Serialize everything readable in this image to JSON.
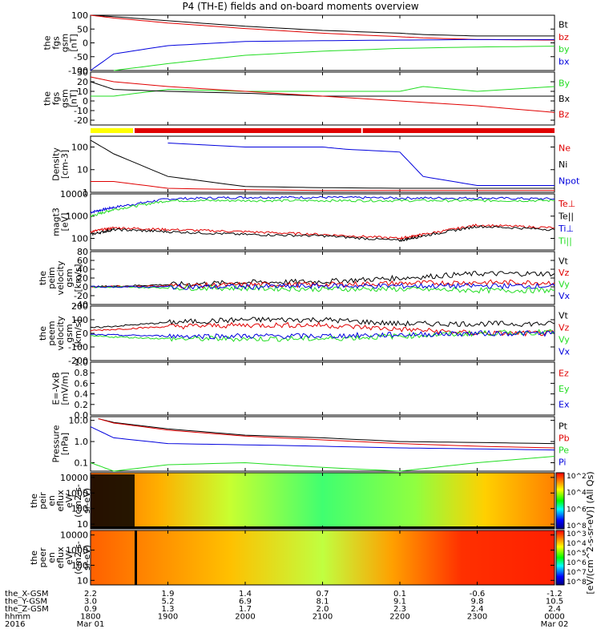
{
  "title": "P4 (TH-E) fields and on-board moments overview",
  "colors": {
    "black": "#000000",
    "red": "#e00000",
    "green": "#22dd22",
    "blue": "#0000dd",
    "yellow": "#ffff00",
    "barRed": "#e00000"
  },
  "chart_data": [
    {
      "type": "line",
      "ylabel": [
        "the",
        "fgs",
        "gsm",
        "[nT]"
      ],
      "ylim": [
        -100,
        100
      ],
      "yticks": [
        "100",
        "50",
        "0",
        "-50",
        "-100"
      ],
      "yticks_values": [
        100,
        50,
        0,
        -50,
        -100
      ],
      "legend": [
        {
          "label": "Bt",
          "color": "#000000"
        },
        {
          "label": "bz",
          "color": "#e00000"
        },
        {
          "label": "by",
          "color": "#22dd22"
        },
        {
          "label": "bx",
          "color": "#0000dd"
        }
      ],
      "series": [
        {
          "color": "#000000",
          "x": [
            1800,
            1830,
            1900,
            2000,
            2100,
            2200,
            2230,
            2300,
            2400
          ],
          "y": [
            100,
            95,
            80,
            60,
            45,
            35,
            30,
            25,
            25
          ]
        },
        {
          "color": "#e00000",
          "x": [
            1800,
            1830,
            1900,
            2000,
            2100,
            2200,
            2230,
            2300,
            2400
          ],
          "y": [
            100,
            90,
            72,
            52,
            35,
            22,
            18,
            12,
            10
          ]
        },
        {
          "color": "#22dd22",
          "x": [
            1830,
            1900,
            2000,
            2100,
            2200,
            2300,
            2400
          ],
          "y": [
            -100,
            -75,
            -45,
            -30,
            -20,
            -15,
            -12
          ]
        },
        {
          "color": "#0000dd",
          "x": [
            1800,
            1830,
            1900,
            2000,
            2100,
            2200,
            2300,
            2400
          ],
          "y": [
            -100,
            -40,
            -10,
            5,
            8,
            10,
            12,
            12
          ]
        }
      ]
    },
    {
      "type": "line",
      "ylabel": [
        "the",
        "fgs",
        "gsm",
        "[nT]"
      ],
      "ylim": [
        -25,
        30
      ],
      "yticks": [
        "30",
        "20",
        "10",
        "0",
        "-10",
        "-20"
      ],
      "yticks_values": [
        30,
        20,
        10,
        0,
        -10,
        -20
      ],
      "legend": [
        {
          "label": "By",
          "color": "#22dd22"
        },
        {
          "label": "Bx",
          "color": "#000000"
        },
        {
          "label": "Bz",
          "color": "#e00000"
        }
      ],
      "series": [
        {
          "color": "#22dd22",
          "x": [
            1800,
            1830,
            1900,
            2000,
            2100,
            2200,
            2230,
            2300,
            2400
          ],
          "y": [
            5,
            5,
            12,
            10,
            10,
            10,
            15,
            10,
            15
          ]
        },
        {
          "color": "#000000",
          "x": [
            1800,
            1830,
            1900,
            2000,
            2100,
            2200,
            2300,
            2400
          ],
          "y": [
            20,
            12,
            10,
            8,
            5,
            5,
            5,
            5
          ]
        },
        {
          "color": "#e00000",
          "x": [
            1800,
            1830,
            1900,
            2000,
            2100,
            2200,
            2300,
            2400
          ],
          "y": [
            25,
            20,
            15,
            10,
            5,
            0,
            -5,
            -12
          ]
        }
      ]
    },
    {
      "type": "line",
      "ylabel": [
        "Density",
        "[cm-3]"
      ],
      "scale": "log",
      "ylim": [
        1,
        300
      ],
      "yticks": [
        "100",
        "10",
        "1"
      ],
      "yticks_values": [
        100,
        10,
        1
      ],
      "legend": [
        {
          "label": "Ne",
          "color": "#e00000"
        },
        {
          "label": "Ni",
          "color": "#000000"
        },
        {
          "label": "Npot",
          "color": "#0000dd"
        }
      ],
      "series": [
        {
          "color": "#e00000",
          "x": [
            1800,
            1830,
            1900,
            2000,
            2100,
            2200,
            2300,
            2400
          ],
          "y": [
            3,
            3,
            1.5,
            1.3,
            1.2,
            1.2,
            1.2,
            1.2
          ]
        },
        {
          "color": "#000000",
          "x": [
            1800,
            1830,
            1900,
            2000,
            2100,
            2200,
            2300,
            2400
          ],
          "y": [
            200,
            50,
            5,
            1.8,
            1.6,
            1.5,
            1.5,
            1.5
          ]
        },
        {
          "color": "#0000dd",
          "x": [
            1900,
            2000,
            2100,
            2130,
            2200,
            2230,
            2300,
            2400
          ],
          "y": [
            150,
            100,
            100,
            80,
            60,
            5,
            2,
            2
          ]
        }
      ]
    },
    {
      "type": "line",
      "ylabel": [
        "magt3",
        "[eV]"
      ],
      "scale": "log",
      "ylim": [
        30,
        10000
      ],
      "yticks": [
        "10000",
        "1000",
        "100"
      ],
      "yticks_values": [
        10000,
        1000,
        100
      ],
      "legend": [
        {
          "label": "Te⊥",
          "color": "#e00000"
        },
        {
          "label": "Te||",
          "color": "#000000"
        },
        {
          "label": "Ti⊥",
          "color": "#0000dd"
        },
        {
          "label": "Ti||",
          "color": "#22dd22"
        }
      ],
      "series": [
        {
          "color": "#0000dd",
          "x": [
            1800,
            1830,
            1900,
            2000,
            2100,
            2200,
            2300,
            2400
          ],
          "y": [
            1500,
            2500,
            6000,
            7000,
            7000,
            6500,
            6500,
            6000
          ]
        },
        {
          "color": "#22dd22",
          "x": [
            1800,
            1830,
            1900,
            2000,
            2100,
            2200,
            2300,
            2400
          ],
          "y": [
            1000,
            2000,
            5000,
            5000,
            5000,
            5000,
            5000,
            5000
          ]
        },
        {
          "color": "#e00000",
          "x": [
            1800,
            1830,
            1900,
            2000,
            2100,
            2200,
            2230,
            2300,
            2400
          ],
          "y": [
            200,
            300,
            250,
            200,
            150,
            100,
            150,
            400,
            300
          ]
        },
        {
          "color": "#000000",
          "x": [
            1800,
            1830,
            1900,
            2000,
            2100,
            2200,
            2230,
            2300,
            2400
          ],
          "y": [
            150,
            250,
            200,
            150,
            130,
            80,
            130,
            350,
            250
          ]
        }
      ]
    },
    {
      "type": "line",
      "ylabel": [
        "the",
        "peim",
        "velocity",
        "gsm",
        "[km/s]"
      ],
      "ylim": [
        -40,
        80
      ],
      "yticks": [
        "80",
        "60",
        "40",
        "20",
        "0",
        "-20",
        "-40"
      ],
      "yticks_values": [
        80,
        60,
        40,
        20,
        0,
        -20,
        -40
      ],
      "legend": [
        {
          "label": "Vt",
          "color": "#000000"
        },
        {
          "label": "Vz",
          "color": "#e00000"
        },
        {
          "label": "Vy",
          "color": "#22dd22"
        },
        {
          "label": "Vx",
          "color": "#0000dd"
        }
      ],
      "series": [
        {
          "color": "#000000",
          "x": [
            1800,
            1900,
            2000,
            2100,
            2200,
            2300,
            2400
          ],
          "y": [
            0,
            5,
            10,
            12,
            20,
            30,
            30
          ]
        },
        {
          "color": "#e00000",
          "x": [
            1800,
            1900,
            2000,
            2100,
            2200,
            2300,
            2400
          ],
          "y": [
            0,
            2,
            5,
            5,
            8,
            10,
            10
          ]
        },
        {
          "color": "#22dd22",
          "x": [
            1800,
            1900,
            2000,
            2100,
            2200,
            2300,
            2400
          ],
          "y": [
            0,
            -2,
            -3,
            -5,
            -5,
            -8,
            -8
          ]
        },
        {
          "color": "#0000dd",
          "x": [
            1800,
            1900,
            2000,
            2100,
            2200,
            2300,
            2400
          ],
          "y": [
            0,
            0,
            0,
            2,
            2,
            2,
            2
          ]
        }
      ]
    },
    {
      "type": "line",
      "ylabel": [
        "the",
        "peem",
        "velocity",
        "gsm",
        "[km/s]"
      ],
      "ylim": [
        -200,
        200
      ],
      "yticks": [
        "200",
        "100",
        "0",
        "-100",
        "-200"
      ],
      "yticks_values": [
        200,
        100,
        0,
        -100,
        -200
      ],
      "legend": [
        {
          "label": "Vt",
          "color": "#000000"
        },
        {
          "label": "Vz",
          "color": "#e00000"
        },
        {
          "label": "Vy",
          "color": "#22dd22"
        },
        {
          "label": "Vx",
          "color": "#0000dd"
        }
      ],
      "series": [
        {
          "color": "#000000",
          "x": [
            1800,
            1900,
            2000,
            2100,
            2200,
            2300,
            2400
          ],
          "y": [
            40,
            80,
            100,
            100,
            70,
            70,
            70
          ]
        },
        {
          "color": "#e00000",
          "x": [
            1800,
            1900,
            2000,
            2100,
            2200,
            2300,
            2400
          ],
          "y": [
            20,
            50,
            60,
            60,
            30,
            0,
            0
          ]
        },
        {
          "color": "#22dd22",
          "x": [
            1800,
            1900,
            2000,
            2100,
            2200,
            2300,
            2400
          ],
          "y": [
            -20,
            -40,
            -40,
            -40,
            -20,
            0,
            10
          ]
        },
        {
          "color": "#0000dd",
          "x": [
            1800,
            1900,
            2000,
            2100,
            2200,
            2300,
            2400
          ],
          "y": [
            -10,
            -20,
            -20,
            -20,
            -10,
            0,
            0
          ]
        }
      ]
    },
    {
      "type": "line",
      "ylabel": [
        "E=-VxB",
        "[mV/m]"
      ],
      "ylim": [
        0,
        1
      ],
      "yticks": [
        "1.0",
        "0.8",
        "0.6",
        "0.4",
        "0.2",
        "0.0"
      ],
      "yticks_values": [
        1.0,
        0.8,
        0.6,
        0.4,
        0.2,
        0.0
      ],
      "legend": [
        {
          "label": "Ez",
          "color": "#e00000"
        },
        {
          "label": "Ey",
          "color": "#22dd22"
        },
        {
          "label": "Ex",
          "color": "#0000dd"
        }
      ],
      "series": []
    },
    {
      "type": "line",
      "ylabel": [
        "Pressure",
        "[nPa]"
      ],
      "scale": "log",
      "ylim": [
        0.04,
        15
      ],
      "yticks": [
        "10.0",
        "1.0",
        "0.1"
      ],
      "yticks_values": [
        10,
        1,
        0.1
      ],
      "legend": [
        {
          "label": "Pt",
          "color": "#000000"
        },
        {
          "label": "Pb",
          "color": "#e00000"
        },
        {
          "label": "Pe",
          "color": "#22dd22"
        },
        {
          "label": "Pi",
          "color": "#0000dd"
        }
      ],
      "series": [
        {
          "color": "#000000",
          "x": [
            1810,
            1830,
            1900,
            2000,
            2100,
            2200,
            2300,
            2400
          ],
          "y": [
            12,
            8,
            4,
            2,
            1.5,
            1.0,
            0.9,
            0.8
          ]
        },
        {
          "color": "#e00000",
          "x": [
            1810,
            1830,
            1900,
            2000,
            2100,
            2200,
            2300,
            2400
          ],
          "y": [
            12,
            7.5,
            3.5,
            1.8,
            1.2,
            0.8,
            0.6,
            0.5
          ]
        },
        {
          "color": "#0000dd",
          "x": [
            1800,
            1830,
            1900,
            2000,
            2100,
            2200,
            2300,
            2400
          ],
          "y": [
            5,
            1.5,
            0.8,
            0.7,
            0.6,
            0.5,
            0.45,
            0.4
          ]
        },
        {
          "color": "#22dd22",
          "x": [
            1800,
            1830,
            1900,
            2000,
            2100,
            2200,
            2300,
            2400
          ],
          "y": [
            0.1,
            0.04,
            0.08,
            0.1,
            0.06,
            0.04,
            0.1,
            0.2
          ]
        }
      ]
    },
    {
      "type": "heatmap",
      "ylabel": [
        "the",
        "peir",
        "en",
        "eflux",
        "eV/",
        "(cm2-s-",
        "sr-eV)"
      ],
      "scale": "log",
      "ylim": [
        5,
        20000
      ],
      "yticks": [
        "10000",
        "1000",
        "100",
        "10"
      ],
      "yticks_values": [
        10000,
        1000,
        100,
        10
      ],
      "colorbar_ticks": [
        "10^8",
        "10^6",
        "10^4",
        "10^2"
      ]
    },
    {
      "type": "heatmap",
      "ylabel": [
        "the",
        "peer",
        "en",
        "eflux",
        "eV/",
        "(cm2-s-",
        "sr-eV)"
      ],
      "scale": "log",
      "ylim": [
        5,
        20000
      ],
      "yticks": [
        "10000",
        "1000",
        "100",
        "10"
      ],
      "yticks_values": [
        10000,
        1000,
        100,
        10
      ],
      "colorbar_ticks": [
        "10^8",
        "10^7",
        "10^6",
        "10^5",
        "10^4",
        "10^3"
      ]
    }
  ],
  "quality_bar": {
    "segments": [
      {
        "from": 1800,
        "to": 1855,
        "color": "#ffff00"
      },
      {
        "from": 1857,
        "to": 2150,
        "color": "#e00000"
      },
      {
        "from": 2152,
        "to": 2400,
        "color": "#e00000"
      }
    ]
  },
  "colorbar_title": "[eV/(cm^2-s-sr-eV)] (All Qs)",
  "xaxis": {
    "rows": [
      {
        "label": "the_X-GSM",
        "values": [
          "2.2",
          "1.9",
          "1.4",
          "0.7",
          "0.1",
          "-0.6",
          "-1.2"
        ]
      },
      {
        "label": "the_Y-GSM",
        "values": [
          "3.0",
          "5.2",
          "6.9",
          "8.1",
          "9.1",
          "9.8",
          "10.5"
        ]
      },
      {
        "label": "the_Z-GSM",
        "values": [
          "0.9",
          "1.3",
          "1.7",
          "2.0",
          "2.3",
          "2.4",
          "2.4"
        ]
      },
      {
        "label": "hhmm",
        "values": [
          "1800",
          "1900",
          "2000",
          "2100",
          "2200",
          "2300",
          "0000"
        ]
      },
      {
        "label": "2016",
        "values": [
          "Mar 01",
          "",
          "",
          "",
          "",
          "",
          "Mar 02"
        ]
      }
    ],
    "tick_times": [
      1800,
      1900,
      2000,
      2100,
      2200,
      2300,
      2400
    ]
  }
}
